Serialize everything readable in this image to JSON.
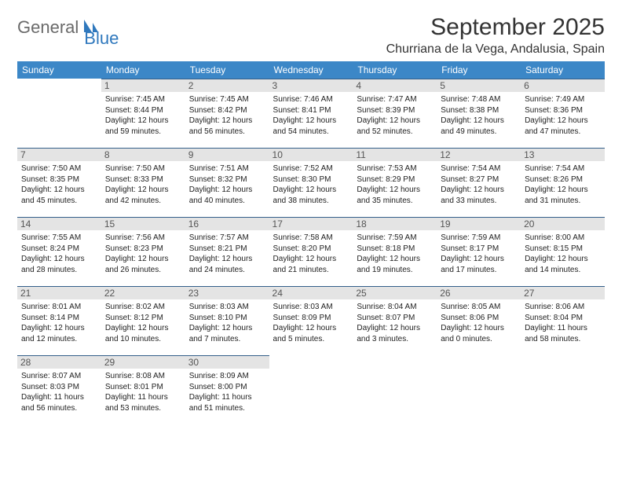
{
  "logo": {
    "part1": "General",
    "part2": "Blue"
  },
  "title": "September 2025",
  "location": "Churriana de la Vega, Andalusia, Spain",
  "colors": {
    "header_bg": "#3c87c7",
    "header_text": "#ffffff",
    "cell_border": "#345f8a",
    "daynum_bg": "#e4e4e4",
    "daynum_text": "#555555",
    "body_text": "#222222",
    "title_text": "#333333",
    "logo_gray": "#6a6a6a",
    "logo_blue": "#2f78bd"
  },
  "day_headers": [
    "Sunday",
    "Monday",
    "Tuesday",
    "Wednesday",
    "Thursday",
    "Friday",
    "Saturday"
  ],
  "weeks": [
    [
      null,
      {
        "n": "1",
        "sr": "7:45 AM",
        "ss": "8:44 PM",
        "dl": "12 hours and 59 minutes."
      },
      {
        "n": "2",
        "sr": "7:45 AM",
        "ss": "8:42 PM",
        "dl": "12 hours and 56 minutes."
      },
      {
        "n": "3",
        "sr": "7:46 AM",
        "ss": "8:41 PM",
        "dl": "12 hours and 54 minutes."
      },
      {
        "n": "4",
        "sr": "7:47 AM",
        "ss": "8:39 PM",
        "dl": "12 hours and 52 minutes."
      },
      {
        "n": "5",
        "sr": "7:48 AM",
        "ss": "8:38 PM",
        "dl": "12 hours and 49 minutes."
      },
      {
        "n": "6",
        "sr": "7:49 AM",
        "ss": "8:36 PM",
        "dl": "12 hours and 47 minutes."
      }
    ],
    [
      {
        "n": "7",
        "sr": "7:50 AM",
        "ss": "8:35 PM",
        "dl": "12 hours and 45 minutes."
      },
      {
        "n": "8",
        "sr": "7:50 AM",
        "ss": "8:33 PM",
        "dl": "12 hours and 42 minutes."
      },
      {
        "n": "9",
        "sr": "7:51 AM",
        "ss": "8:32 PM",
        "dl": "12 hours and 40 minutes."
      },
      {
        "n": "10",
        "sr": "7:52 AM",
        "ss": "8:30 PM",
        "dl": "12 hours and 38 minutes."
      },
      {
        "n": "11",
        "sr": "7:53 AM",
        "ss": "8:29 PM",
        "dl": "12 hours and 35 minutes."
      },
      {
        "n": "12",
        "sr": "7:54 AM",
        "ss": "8:27 PM",
        "dl": "12 hours and 33 minutes."
      },
      {
        "n": "13",
        "sr": "7:54 AM",
        "ss": "8:26 PM",
        "dl": "12 hours and 31 minutes."
      }
    ],
    [
      {
        "n": "14",
        "sr": "7:55 AM",
        "ss": "8:24 PM",
        "dl": "12 hours and 28 minutes."
      },
      {
        "n": "15",
        "sr": "7:56 AM",
        "ss": "8:23 PM",
        "dl": "12 hours and 26 minutes."
      },
      {
        "n": "16",
        "sr": "7:57 AM",
        "ss": "8:21 PM",
        "dl": "12 hours and 24 minutes."
      },
      {
        "n": "17",
        "sr": "7:58 AM",
        "ss": "8:20 PM",
        "dl": "12 hours and 21 minutes."
      },
      {
        "n": "18",
        "sr": "7:59 AM",
        "ss": "8:18 PM",
        "dl": "12 hours and 19 minutes."
      },
      {
        "n": "19",
        "sr": "7:59 AM",
        "ss": "8:17 PM",
        "dl": "12 hours and 17 minutes."
      },
      {
        "n": "20",
        "sr": "8:00 AM",
        "ss": "8:15 PM",
        "dl": "12 hours and 14 minutes."
      }
    ],
    [
      {
        "n": "21",
        "sr": "8:01 AM",
        "ss": "8:14 PM",
        "dl": "12 hours and 12 minutes."
      },
      {
        "n": "22",
        "sr": "8:02 AM",
        "ss": "8:12 PM",
        "dl": "12 hours and 10 minutes."
      },
      {
        "n": "23",
        "sr": "8:03 AM",
        "ss": "8:10 PM",
        "dl": "12 hours and 7 minutes."
      },
      {
        "n": "24",
        "sr": "8:03 AM",
        "ss": "8:09 PM",
        "dl": "12 hours and 5 minutes."
      },
      {
        "n": "25",
        "sr": "8:04 AM",
        "ss": "8:07 PM",
        "dl": "12 hours and 3 minutes."
      },
      {
        "n": "26",
        "sr": "8:05 AM",
        "ss": "8:06 PM",
        "dl": "12 hours and 0 minutes."
      },
      {
        "n": "27",
        "sr": "8:06 AM",
        "ss": "8:04 PM",
        "dl": "11 hours and 58 minutes."
      }
    ],
    [
      {
        "n": "28",
        "sr": "8:07 AM",
        "ss": "8:03 PM",
        "dl": "11 hours and 56 minutes."
      },
      {
        "n": "29",
        "sr": "8:08 AM",
        "ss": "8:01 PM",
        "dl": "11 hours and 53 minutes."
      },
      {
        "n": "30",
        "sr": "8:09 AM",
        "ss": "8:00 PM",
        "dl": "11 hours and 51 minutes."
      },
      null,
      null,
      null,
      null
    ]
  ],
  "labels": {
    "sunrise": "Sunrise:",
    "sunset": "Sunset:",
    "daylight": "Daylight:"
  }
}
